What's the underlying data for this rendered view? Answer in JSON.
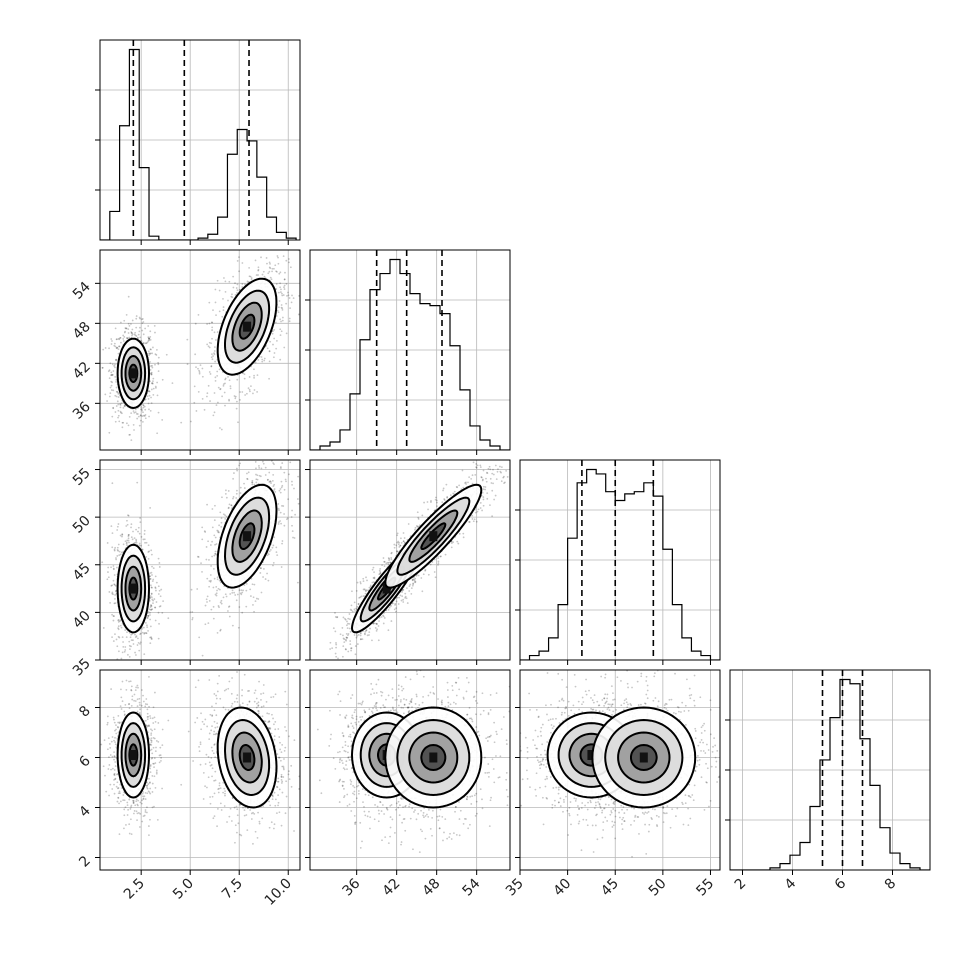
{
  "chart_data": {
    "type": "corner",
    "parameters": [
      {
        "range": [
          0.4,
          10.6
        ],
        "ticks": [
          2.5,
          5.0,
          7.5,
          10.0
        ],
        "tick_labels": [
          "2.5",
          "5.0",
          "7.5",
          "10.0"
        ],
        "quantiles": [
          2.1,
          4.7,
          8.0
        ],
        "hist_edges": [
          0.4,
          0.9,
          1.4,
          1.9,
          2.4,
          2.9,
          3.4,
          3.9,
          4.4,
          4.9,
          5.4,
          5.9,
          6.4,
          6.9,
          7.4,
          7.9,
          8.4,
          8.9,
          9.4,
          9.9,
          10.4
        ],
        "hist_counts": [
          0.0,
          0.15,
          0.6,
          1.0,
          0.38,
          0.02,
          0.0,
          0.0,
          0.0,
          0.0,
          0.01,
          0.03,
          0.12,
          0.45,
          0.58,
          0.52,
          0.33,
          0.12,
          0.04,
          0.01
        ]
      },
      {
        "range": [
          29.0,
          59.0
        ],
        "ticks": [
          36,
          42,
          48,
          54
        ],
        "tick_labels": [
          "36",
          "42",
          "48",
          "54"
        ],
        "quantiles": [
          39.0,
          43.5,
          48.8
        ],
        "hist_edges": [
          29,
          30.5,
          32,
          33.5,
          35,
          36.5,
          38,
          39.5,
          41,
          42.5,
          44,
          45.5,
          47,
          48.5,
          50,
          51.5,
          53,
          54.5,
          56,
          57.5,
          59
        ],
        "hist_counts": [
          0.0,
          0.02,
          0.04,
          0.1,
          0.28,
          0.55,
          0.8,
          0.88,
          0.95,
          0.88,
          0.78,
          0.73,
          0.72,
          0.68,
          0.52,
          0.3,
          0.12,
          0.05,
          0.02,
          0.0
        ]
      },
      {
        "range": [
          35.0,
          56.0
        ],
        "ticks": [
          35,
          40,
          45,
          50,
          55
        ],
        "tick_labels": [
          "35",
          "40",
          "45",
          "50",
          "55"
        ],
        "quantiles": [
          41.5,
          45.0,
          49.0
        ],
        "hist_edges": [
          35,
          36,
          37,
          38,
          39,
          40,
          41,
          42,
          43,
          44,
          45,
          46,
          47,
          48,
          49,
          50,
          51,
          52,
          53,
          54,
          55,
          56
        ],
        "hist_counts": [
          0.0,
          0.02,
          0.04,
          0.1,
          0.25,
          0.55,
          0.8,
          0.86,
          0.84,
          0.76,
          0.72,
          0.75,
          0.76,
          0.8,
          0.74,
          0.5,
          0.25,
          0.1,
          0.04,
          0.02,
          0.0
        ]
      },
      {
        "range": [
          1.5,
          9.5
        ],
        "ticks": [
          2,
          4,
          6,
          8
        ],
        "tick_labels": [
          "2",
          "4",
          "6",
          "8"
        ],
        "quantiles": [
          5.2,
          6.0,
          6.8
        ],
        "hist_edges": [
          1.5,
          1.9,
          2.3,
          2.7,
          3.1,
          3.5,
          3.9,
          4.3,
          4.7,
          5.1,
          5.5,
          5.9,
          6.3,
          6.7,
          7.1,
          7.5,
          7.9,
          8.3,
          8.7,
          9.1,
          9.5
        ],
        "hist_counts": [
          0.0,
          0.0,
          0.0,
          0.0,
          0.01,
          0.03,
          0.07,
          0.13,
          0.3,
          0.52,
          0.72,
          0.9,
          0.88,
          0.62,
          0.4,
          0.2,
          0.08,
          0.03,
          0.01,
          0.0
        ]
      }
    ],
    "pair_clusters": [
      {
        "pair": [
          0,
          1
        ],
        "clusters": [
          {
            "center": [
              2.1,
              40.5
            ],
            "sigma": [
              0.4,
              2.6
            ],
            "corr": 0.0
          },
          {
            "center": [
              7.9,
              47.5
            ],
            "sigma": [
              0.75,
              3.6
            ],
            "corr": 0.5
          }
        ]
      },
      {
        "pair": [
          0,
          2
        ],
        "clusters": [
          {
            "center": [
              2.1,
              42.5
            ],
            "sigma": [
              0.4,
              2.3
            ],
            "corr": 0.0
          },
          {
            "center": [
              7.9,
              48.0
            ],
            "sigma": [
              0.75,
              2.7
            ],
            "corr": 0.5
          }
        ]
      },
      {
        "pair": [
          0,
          3
        ],
        "clusters": [
          {
            "center": [
              2.1,
              6.1
            ],
            "sigma": [
              0.4,
              0.85
            ],
            "corr": 0.0
          },
          {
            "center": [
              7.9,
              6.0
            ],
            "sigma": [
              0.75,
              1.0
            ],
            "corr": -0.2
          }
        ]
      },
      {
        "pair": [
          1,
          2
        ],
        "clusters": [
          {
            "center": [
              40.5,
              42.5
            ],
            "sigma": [
              2.6,
              2.3
            ],
            "corr": 0.9
          },
          {
            "center": [
              47.5,
              48.0
            ],
            "sigma": [
              3.6,
              2.7
            ],
            "corr": 0.9
          }
        ]
      },
      {
        "pair": [
          1,
          3
        ],
        "clusters": [
          {
            "center": [
              40.5,
              6.1
            ],
            "sigma": [
              2.6,
              0.85
            ],
            "corr": 0.0
          },
          {
            "center": [
              47.5,
              6.0
            ],
            "sigma": [
              3.6,
              1.0
            ],
            "corr": 0.0
          }
        ]
      },
      {
        "pair": [
          2,
          3
        ],
        "clusters": [
          {
            "center": [
              42.5,
              6.1
            ],
            "sigma": [
              2.3,
              0.85
            ],
            "corr": 0.0
          },
          {
            "center": [
              48.0,
              6.0
            ],
            "sigma": [
              2.7,
              1.0
            ],
            "corr": 0.0
          }
        ]
      }
    ],
    "contour_levels_sigma": [
      0.5,
      1.0,
      1.5,
      2.0
    ],
    "grid": true,
    "colors": {
      "line": "#000000",
      "grid": "#b8b8b8",
      "fill_dark": "#2b2b2b",
      "fill_light": "#f0f0f0"
    }
  }
}
